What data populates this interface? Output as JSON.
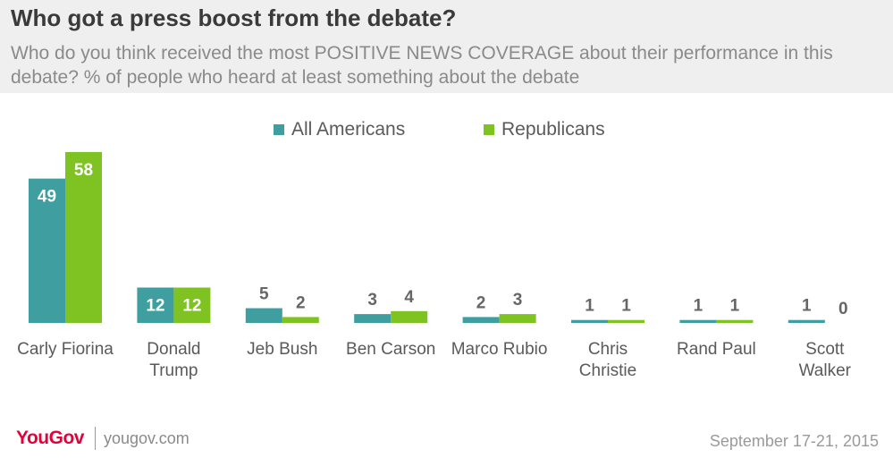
{
  "header": {
    "title": "Who got a press boost from the debate?",
    "subtitle": "Who do you think received the most POSITIVE NEWS COVERAGE about their performance in this debate? % of people who heard at least something about the debate"
  },
  "legend": [
    {
      "label": "All Americans",
      "color": "#3f9ea0"
    },
    {
      "label": "Republicans",
      "color": "#7ec322"
    }
  ],
  "chart_data": {
    "type": "bar",
    "categories": [
      [
        "Carly Fiorina"
      ],
      [
        "Donald",
        "Trump"
      ],
      [
        "Jeb Bush"
      ],
      [
        "Ben Carson"
      ],
      [
        "Marco Rubio"
      ],
      [
        "Chris",
        "Christie"
      ],
      [
        "Rand Paul"
      ],
      [
        "Scott",
        "Walker"
      ]
    ],
    "series": [
      {
        "name": "All Americans",
        "color": "#3f9ea0",
        "values": [
          49,
          12,
          5,
          3,
          2,
          1,
          1,
          1
        ]
      },
      {
        "name": "Republicans",
        "color": "#7ec322",
        "values": [
          58,
          12,
          2,
          4,
          3,
          1,
          1,
          0
        ]
      }
    ],
    "ylim": [
      0,
      58
    ],
    "grid": false,
    "legend_position": "top-center"
  },
  "footer": {
    "brand": "YouGov",
    "site": "yougov.com",
    "date": "September 17-21, 2015"
  }
}
